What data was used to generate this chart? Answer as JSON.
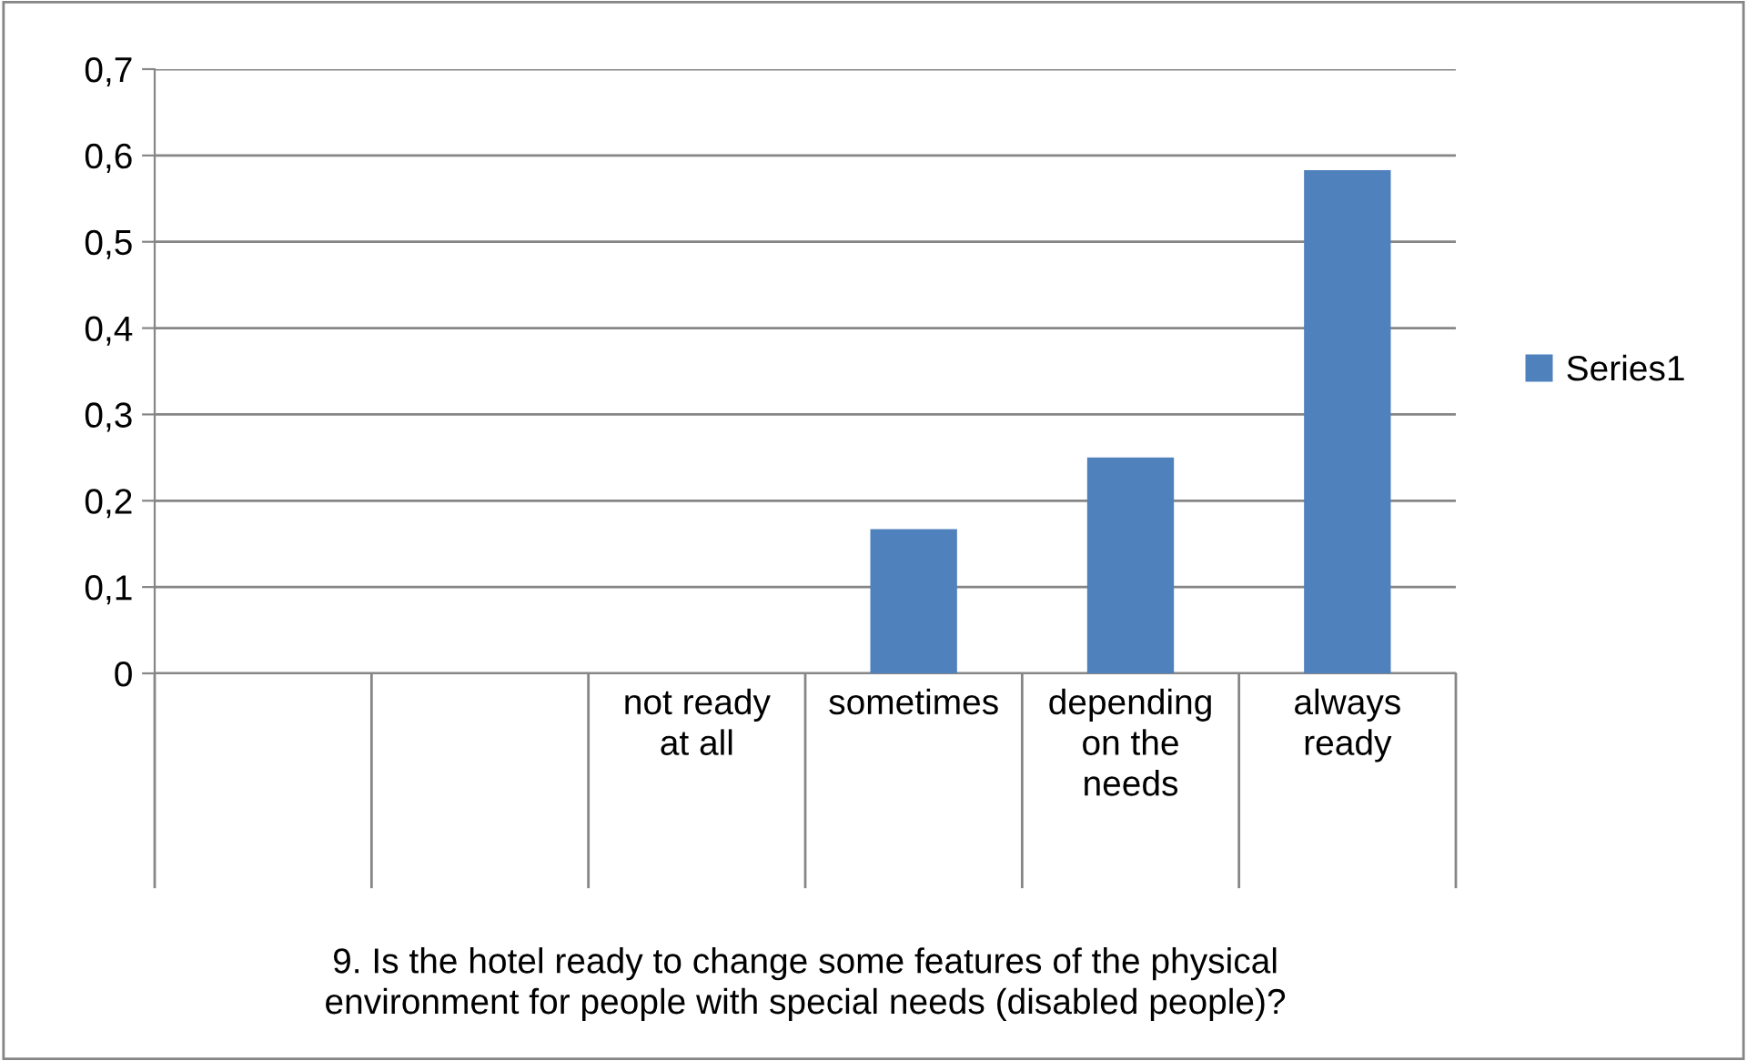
{
  "chart_data": {
    "type": "bar",
    "categories": [
      null,
      null,
      "not ready\nat all",
      "sometimes",
      "depending\non the\nneeds",
      "always\nready"
    ],
    "series": [
      {
        "name": "Series1",
        "color": "#4f81bd",
        "values": [
          null,
          null,
          0,
          0.167,
          0.25,
          0.583
        ]
      }
    ],
    "xlabel": "9. Is the hotel ready to change some features of the physical\nenvironment for people with special needs (disabled people)?",
    "ylim": [
      0,
      0.7
    ],
    "yticks": [
      0,
      {
        "value": 0.1,
        "label": "0,1"
      },
      {
        "value": 0.2,
        "label": "0,2"
      },
      {
        "value": 0.3,
        "label": "0,3"
      },
      {
        "value": 0.4,
        "label": "0,4"
      },
      {
        "value": 0.5,
        "label": "0,5"
      },
      {
        "value": 0.6,
        "label": "0,6"
      },
      {
        "value": 0.7,
        "label": "0,7"
      }
    ],
    "grid": "y",
    "legend": "right"
  }
}
